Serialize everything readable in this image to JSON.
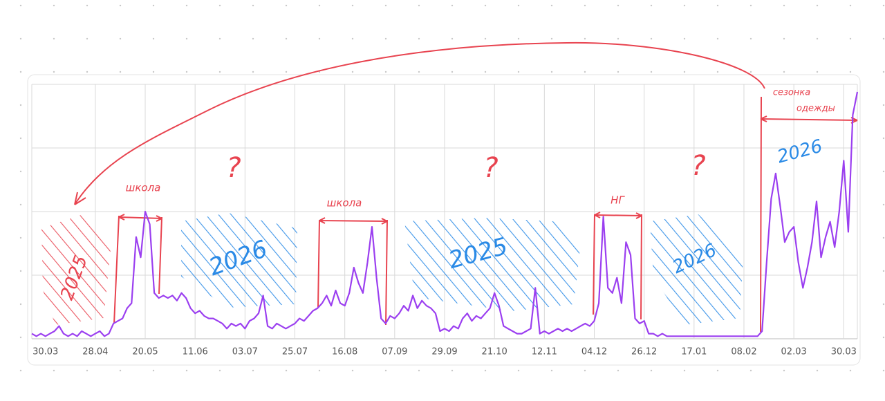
{
  "chart_data": {
    "type": "line",
    "categories": [
      null,
      null,
      null,
      "30.03",
      null,
      null,
      null,
      null,
      null,
      null,
      null,
      null,
      null,
      null,
      "28.04",
      null,
      null,
      null,
      null,
      null,
      null,
      null,
      null,
      null,
      null,
      "20.05",
      null,
      null,
      null,
      null,
      null,
      null,
      null,
      null,
      null,
      null,
      "11.06",
      null,
      null,
      null,
      null,
      null,
      null,
      null,
      null,
      null,
      null,
      "03.07",
      null,
      null,
      null,
      null,
      null,
      null,
      null,
      null,
      null,
      null,
      "25.07",
      null,
      null,
      null,
      null,
      null,
      null,
      null,
      null,
      null,
      null,
      "16.08",
      null,
      null,
      null,
      null,
      null,
      null,
      null,
      null,
      null,
      null,
      "07.09",
      null,
      null,
      null,
      null,
      null,
      null,
      null,
      null,
      null,
      null,
      "29.09",
      null,
      null,
      null,
      null,
      null,
      null,
      null,
      null,
      null,
      null,
      "21.10",
      null,
      null,
      null,
      null,
      null,
      null,
      null,
      null,
      null,
      null,
      "12.11",
      null,
      null,
      null,
      null,
      null,
      null,
      null,
      null,
      null,
      null,
      "04.12",
      null,
      null,
      null,
      null,
      null,
      null,
      null,
      null,
      null,
      null,
      "26.12",
      null,
      null,
      null,
      null,
      null,
      null,
      null,
      null,
      null,
      null,
      "17.01",
      null,
      null,
      null,
      null,
      null,
      null,
      null,
      null,
      null,
      null,
      "08.02",
      null,
      null,
      null,
      null,
      null,
      null,
      null,
      null,
      null,
      null,
      "02.03",
      null,
      null,
      null,
      null,
      null,
      null,
      null,
      null,
      null,
      null,
      "30.03",
      null,
      null,
      null
    ],
    "series": [
      {
        "color": "#9b3ff0",
        "values": [
          2,
          1,
          2,
          1,
          2,
          3,
          5,
          2,
          1,
          2,
          1,
          3,
          2,
          1,
          2,
          3,
          1,
          2,
          6,
          7,
          8,
          12,
          14,
          40,
          32,
          50,
          45,
          18,
          16,
          17,
          16,
          17,
          15,
          18,
          16,
          12,
          10,
          11,
          9,
          8,
          8,
          7,
          6,
          4,
          6,
          5,
          6,
          4,
          7,
          8,
          10,
          17,
          5,
          4,
          6,
          5,
          4,
          5,
          6,
          8,
          7,
          9,
          11,
          12,
          14,
          17,
          13,
          19,
          14,
          13,
          18,
          28,
          22,
          18,
          30,
          44,
          24,
          8,
          6,
          9,
          8,
          10,
          13,
          11,
          17,
          12,
          15,
          13,
          12,
          10,
          3,
          4,
          3,
          5,
          4,
          8,
          10,
          7,
          9,
          8,
          10,
          12,
          18,
          13,
          5,
          4,
          3,
          2,
          2,
          3,
          4,
          20,
          2,
          3,
          2,
          3,
          4,
          3,
          4,
          3,
          4,
          5,
          6,
          5,
          7,
          14,
          48,
          20,
          18,
          24,
          14,
          38,
          33,
          8,
          6,
          7,
          2,
          2,
          1,
          2,
          1,
          1,
          1,
          1,
          1,
          1,
          1,
          1,
          1,
          1,
          1,
          1,
          1,
          1,
          1,
          1,
          1,
          1,
          1,
          1,
          1,
          3,
          30,
          55,
          65,
          52,
          38,
          42,
          44,
          30,
          20,
          28,
          38,
          54,
          32,
          40,
          46,
          36,
          50,
          70,
          42,
          88,
          97
        ]
      }
    ],
    "ylim": [
      0,
      100
    ],
    "yticks": [
      0,
      25,
      50,
      75,
      100
    ],
    "grid": true,
    "annotations": [
      "школа",
      "?",
      "школа",
      "?",
      "НГ",
      "?",
      "2025",
      "2026",
      "2025",
      "2026",
      "2026",
      "сезонка",
      "одежды"
    ]
  }
}
